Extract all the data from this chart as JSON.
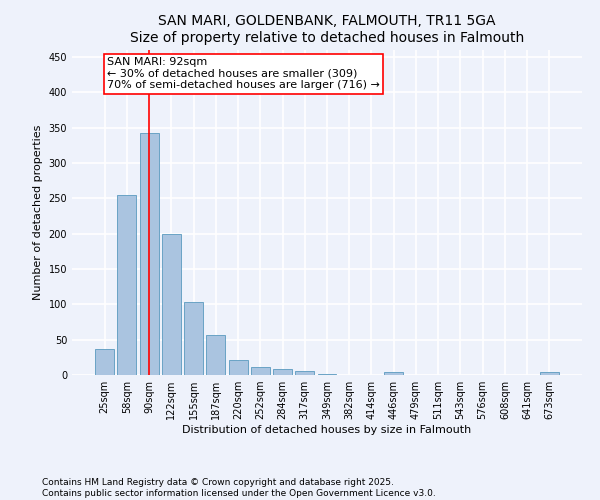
{
  "title": "SAN MARI, GOLDENBANK, FALMOUTH, TR11 5GA",
  "subtitle": "Size of property relative to detached houses in Falmouth",
  "xlabel": "Distribution of detached houses by size in Falmouth",
  "ylabel": "Number of detached properties",
  "categories": [
    "25sqm",
    "58sqm",
    "90sqm",
    "122sqm",
    "155sqm",
    "187sqm",
    "220sqm",
    "252sqm",
    "284sqm",
    "317sqm",
    "349sqm",
    "382sqm",
    "414sqm",
    "446sqm",
    "479sqm",
    "511sqm",
    "543sqm",
    "576sqm",
    "608sqm",
    "641sqm",
    "673sqm"
  ],
  "values": [
    37,
    255,
    343,
    199,
    104,
    56,
    21,
    11,
    8,
    5,
    2,
    0,
    0,
    4,
    0,
    0,
    0,
    0,
    0,
    0,
    4
  ],
  "bar_color": "#aac4e0",
  "bar_edge_color": "#5a9abf",
  "vline_x_index": 2,
  "vline_color": "red",
  "annotation_text": "SAN MARI: 92sqm\n← 30% of detached houses are smaller (309)\n70% of semi-detached houses are larger (716) →",
  "annotation_box_color": "white",
  "annotation_box_edge_color": "red",
  "ylim": [
    0,
    460
  ],
  "yticks": [
    0,
    50,
    100,
    150,
    200,
    250,
    300,
    350,
    400,
    450
  ],
  "footer_line1": "Contains HM Land Registry data © Crown copyright and database right 2025.",
  "footer_line2": "Contains public sector information licensed under the Open Government Licence v3.0.",
  "bg_color": "#eef2fb",
  "grid_color": "white",
  "title_fontsize": 10,
  "subtitle_fontsize": 9,
  "tick_fontsize": 7,
  "label_fontsize": 8,
  "annotation_fontsize": 8,
  "footer_fontsize": 6.5
}
